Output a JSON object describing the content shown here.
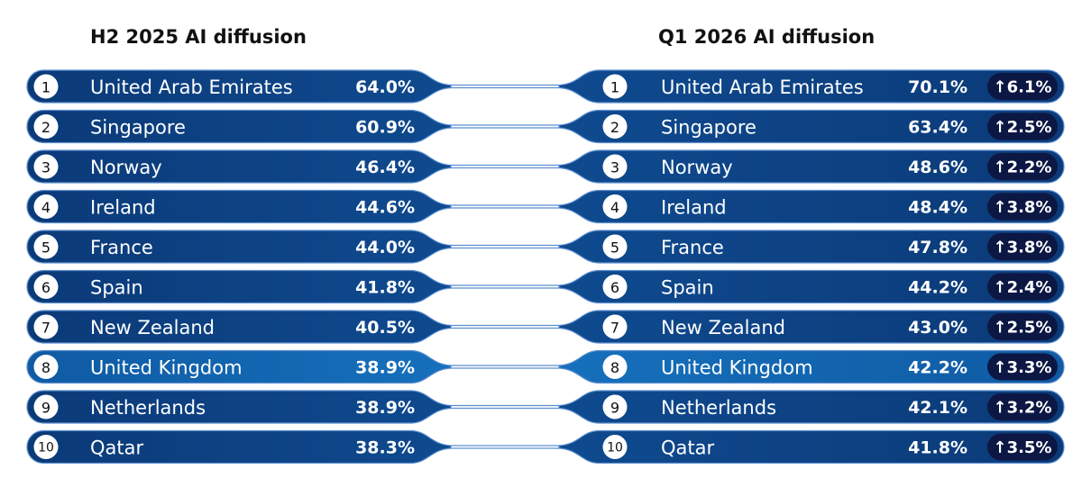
{
  "headers": {
    "left": "H2 2025 AI diffusion",
    "right": "Q1 2026 AI diffusion"
  },
  "colors": {
    "bar_dark": "#0d3f7e",
    "bar_light": "#1264ac",
    "border": "#5b8ecf",
    "badge": "#0c1744",
    "text": "#ffffff",
    "rank_circle": "#ffffff",
    "rank_text": "#111111"
  },
  "chart_data": {
    "type": "table",
    "columns": [
      "rank",
      "country",
      "h2_2025",
      "q1_2026",
      "change"
    ],
    "rows": [
      {
        "rank": "1",
        "country": "United Arab Emirates",
        "h2_2025": "64.0%",
        "q1_2026": "70.1%",
        "change": "↑6.1%",
        "highlight": false
      },
      {
        "rank": "2",
        "country": "Singapore",
        "h2_2025": "60.9%",
        "q1_2026": "63.4%",
        "change": "↑2.5%",
        "highlight": false
      },
      {
        "rank": "3",
        "country": "Norway",
        "h2_2025": "46.4%",
        "q1_2026": "48.6%",
        "change": "↑2.2%",
        "highlight": false
      },
      {
        "rank": "4",
        "country": "Ireland",
        "h2_2025": "44.6%",
        "q1_2026": "48.4%",
        "change": "↑3.8%",
        "highlight": false
      },
      {
        "rank": "5",
        "country": "France",
        "h2_2025": "44.0%",
        "q1_2026": "47.8%",
        "change": "↑3.8%",
        "highlight": false
      },
      {
        "rank": "6",
        "country": "Spain",
        "h2_2025": "41.8%",
        "q1_2026": "44.2%",
        "change": "↑2.4%",
        "highlight": false
      },
      {
        "rank": "7",
        "country": "New Zealand",
        "h2_2025": "40.5%",
        "q1_2026": "43.0%",
        "change": "↑2.5%",
        "highlight": false
      },
      {
        "rank": "8",
        "country": "United Kingdom",
        "h2_2025": "38.9%",
        "q1_2026": "42.2%",
        "change": "↑3.3%",
        "highlight": true
      },
      {
        "rank": "9",
        "country": "Netherlands",
        "h2_2025": "38.9%",
        "q1_2026": "42.1%",
        "change": "↑3.2%",
        "highlight": false
      },
      {
        "rank": "10",
        "country": "Qatar",
        "h2_2025": "38.3%",
        "q1_2026": "41.8%",
        "change": "↑3.5%",
        "highlight": false
      }
    ]
  }
}
